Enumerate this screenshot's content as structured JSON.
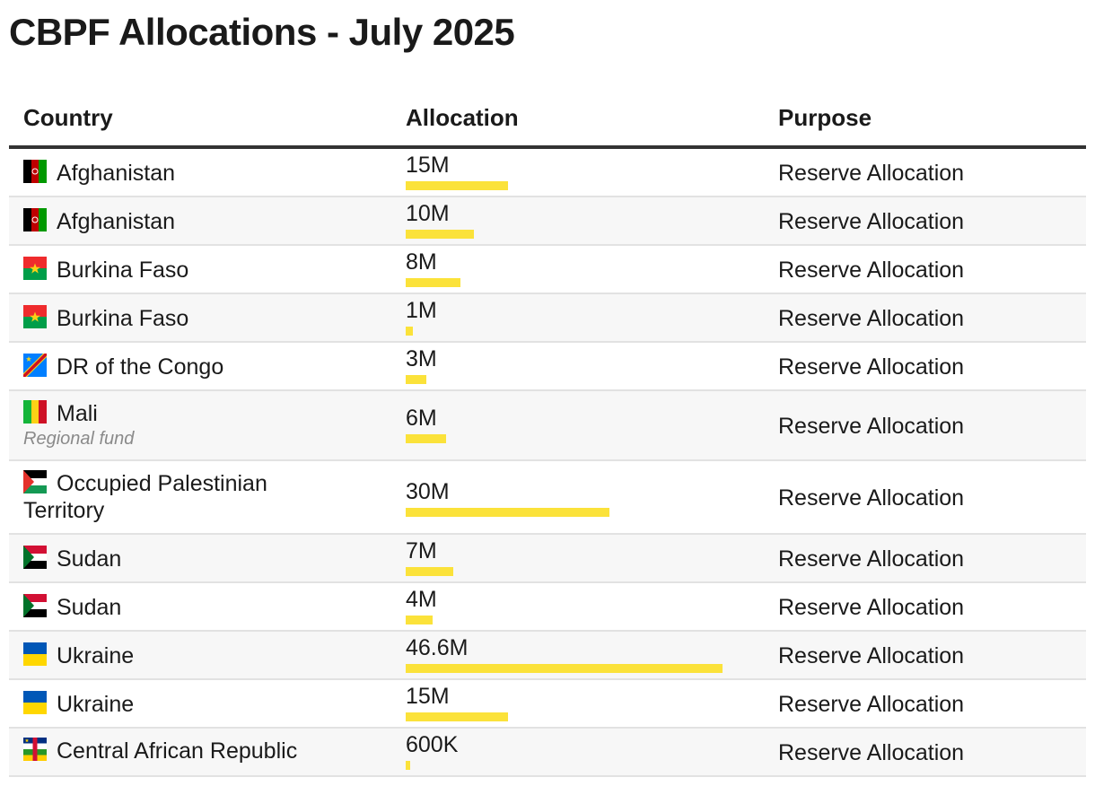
{
  "title": "CBPF Allocations - July 2025",
  "headers": {
    "country": "Country",
    "allocation": "Allocation",
    "purpose": "Purpose"
  },
  "colors": {
    "bar": "#fbe23a",
    "header_rule": "#333333",
    "row_alt": "#f7f7f7"
  },
  "rows": [
    {
      "country": "Afghanistan",
      "flag": "afghanistan-flag-icon",
      "note": "",
      "value": 15,
      "label": "15M",
      "purpose": "Reserve Allocation"
    },
    {
      "country": "Afghanistan",
      "flag": "afghanistan-flag-icon",
      "note": "",
      "value": 10,
      "label": "10M",
      "purpose": "Reserve Allocation"
    },
    {
      "country": "Burkina Faso",
      "flag": "burkina-faso-flag-icon",
      "note": "",
      "value": 8,
      "label": "8M",
      "purpose": "Reserve Allocation"
    },
    {
      "country": "Burkina Faso",
      "flag": "burkina-faso-flag-icon",
      "note": "",
      "value": 1,
      "label": "1M",
      "purpose": "Reserve Allocation"
    },
    {
      "country": "DR of the Congo",
      "flag": "drc-flag-icon",
      "note": "",
      "value": 3,
      "label": "3M",
      "purpose": "Reserve Allocation"
    },
    {
      "country": "Mali",
      "flag": "mali-flag-icon",
      "note": "Regional fund",
      "value": 6,
      "label": "6M",
      "purpose": "Reserve Allocation"
    },
    {
      "country": "Occupied Palestinian Territory",
      "flag": "palestine-flag-icon",
      "note": "",
      "value": 30,
      "label": "30M",
      "purpose": "Reserve Allocation"
    },
    {
      "country": "Sudan",
      "flag": "sudan-flag-icon",
      "note": "",
      "value": 7,
      "label": "7M",
      "purpose": "Reserve Allocation"
    },
    {
      "country": "Sudan",
      "flag": "sudan-flag-icon",
      "note": "",
      "value": 4,
      "label": "4M",
      "purpose": "Reserve Allocation"
    },
    {
      "country": "Ukraine",
      "flag": "ukraine-flag-icon",
      "note": "",
      "value": 46.6,
      "label": "46.6M",
      "purpose": "Reserve Allocation"
    },
    {
      "country": "Ukraine",
      "flag": "ukraine-flag-icon",
      "note": "",
      "value": 15,
      "label": "15M",
      "purpose": "Reserve Allocation"
    },
    {
      "country": "Central African Republic",
      "flag": "car-flag-icon",
      "note": "",
      "value": 0.6,
      "label": "600K",
      "purpose": "Reserve Allocation"
    }
  ],
  "chart_data": {
    "type": "bar",
    "title": "CBPF Allocations - July 2025",
    "categories": [
      "Afghanistan",
      "Afghanistan",
      "Burkina Faso",
      "Burkina Faso",
      "DR of the Congo",
      "Mali",
      "Occupied Palestinian Territory",
      "Sudan",
      "Sudan",
      "Ukraine",
      "Ukraine",
      "Central African Republic"
    ],
    "values": [
      15,
      10,
      8,
      1,
      3,
      6,
      30,
      7,
      4,
      46.6,
      15,
      0.6
    ],
    "value_labels": [
      "15M",
      "10M",
      "8M",
      "1M",
      "3M",
      "6M",
      "30M",
      "7M",
      "4M",
      "46.6M",
      "15M",
      "600K"
    ],
    "unit": "M",
    "xlabel": "Allocation",
    "ylabel": "Country",
    "grid": false
  }
}
